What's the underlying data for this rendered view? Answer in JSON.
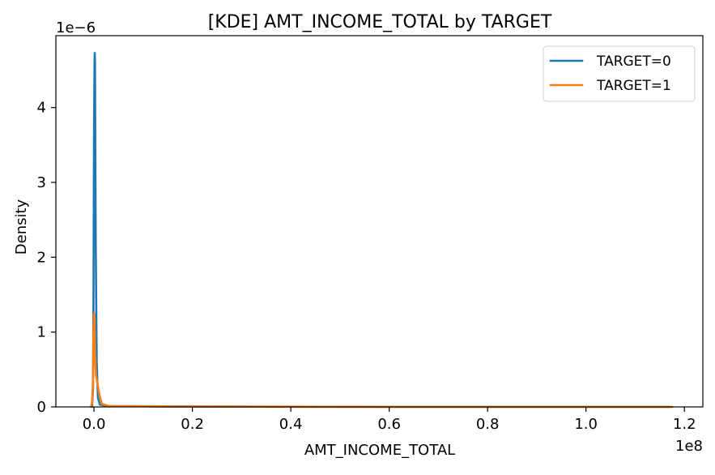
{
  "chart_data": {
    "type": "line",
    "title": "[KDE] AMT_INCOME_TOTAL by TARGET",
    "xlabel": "AMT_INCOME_TOTAL",
    "ylabel": "Density",
    "x_offset_label": "1e8",
    "y_offset_label": "1e−6",
    "x_ticks": [
      "0.0",
      "0.2",
      "0.4",
      "0.6",
      "0.8",
      "1.0",
      "1.2"
    ],
    "x_tick_values": [
      0.0,
      0.2,
      0.4,
      0.6,
      0.8,
      1.0,
      1.2
    ],
    "y_ticks": [
      "0",
      "1",
      "2",
      "3",
      "4"
    ],
    "y_tick_values": [
      0,
      1,
      2,
      3,
      4
    ],
    "xlim": [
      -0.0775,
      1.2375
    ],
    "ylim": [
      0,
      4.96
    ],
    "legend_position": "upper right",
    "grid": false,
    "series": [
      {
        "name": "TARGET=0",
        "color": "#1f77b4",
        "points": [
          [
            -0.004,
            0.0
          ],
          [
            -0.002,
            0.25
          ],
          [
            -0.001,
            1.6
          ],
          [
            0.0,
            3.6
          ],
          [
            0.001,
            4.55
          ],
          [
            0.0015,
            4.73
          ],
          [
            0.002,
            4.6
          ],
          [
            0.0035,
            2.2
          ],
          [
            0.0055,
            0.6
          ],
          [
            0.008,
            0.12
          ],
          [
            0.012,
            0.03
          ],
          [
            0.03,
            0.012
          ],
          [
            0.17,
            0.006
          ],
          [
            0.6,
            0.0
          ],
          [
            1.17,
            0.0
          ]
        ]
      },
      {
        "name": "TARGET=1",
        "color": "#ff7f0e",
        "points": [
          [
            -0.006,
            0.0
          ],
          [
            -0.004,
            0.06
          ],
          [
            -0.002,
            0.35
          ],
          [
            -0.001,
            0.95
          ],
          [
            0.0,
            1.25
          ],
          [
            0.001,
            1.2
          ],
          [
            0.002,
            0.7
          ],
          [
            0.004,
            0.42
          ],
          [
            0.007,
            0.32
          ],
          [
            0.011,
            0.16
          ],
          [
            0.016,
            0.04
          ],
          [
            0.03,
            0.012
          ],
          [
            0.17,
            0.005
          ],
          [
            0.6,
            0.0
          ],
          [
            1.175,
            0.0
          ]
        ]
      }
    ]
  }
}
